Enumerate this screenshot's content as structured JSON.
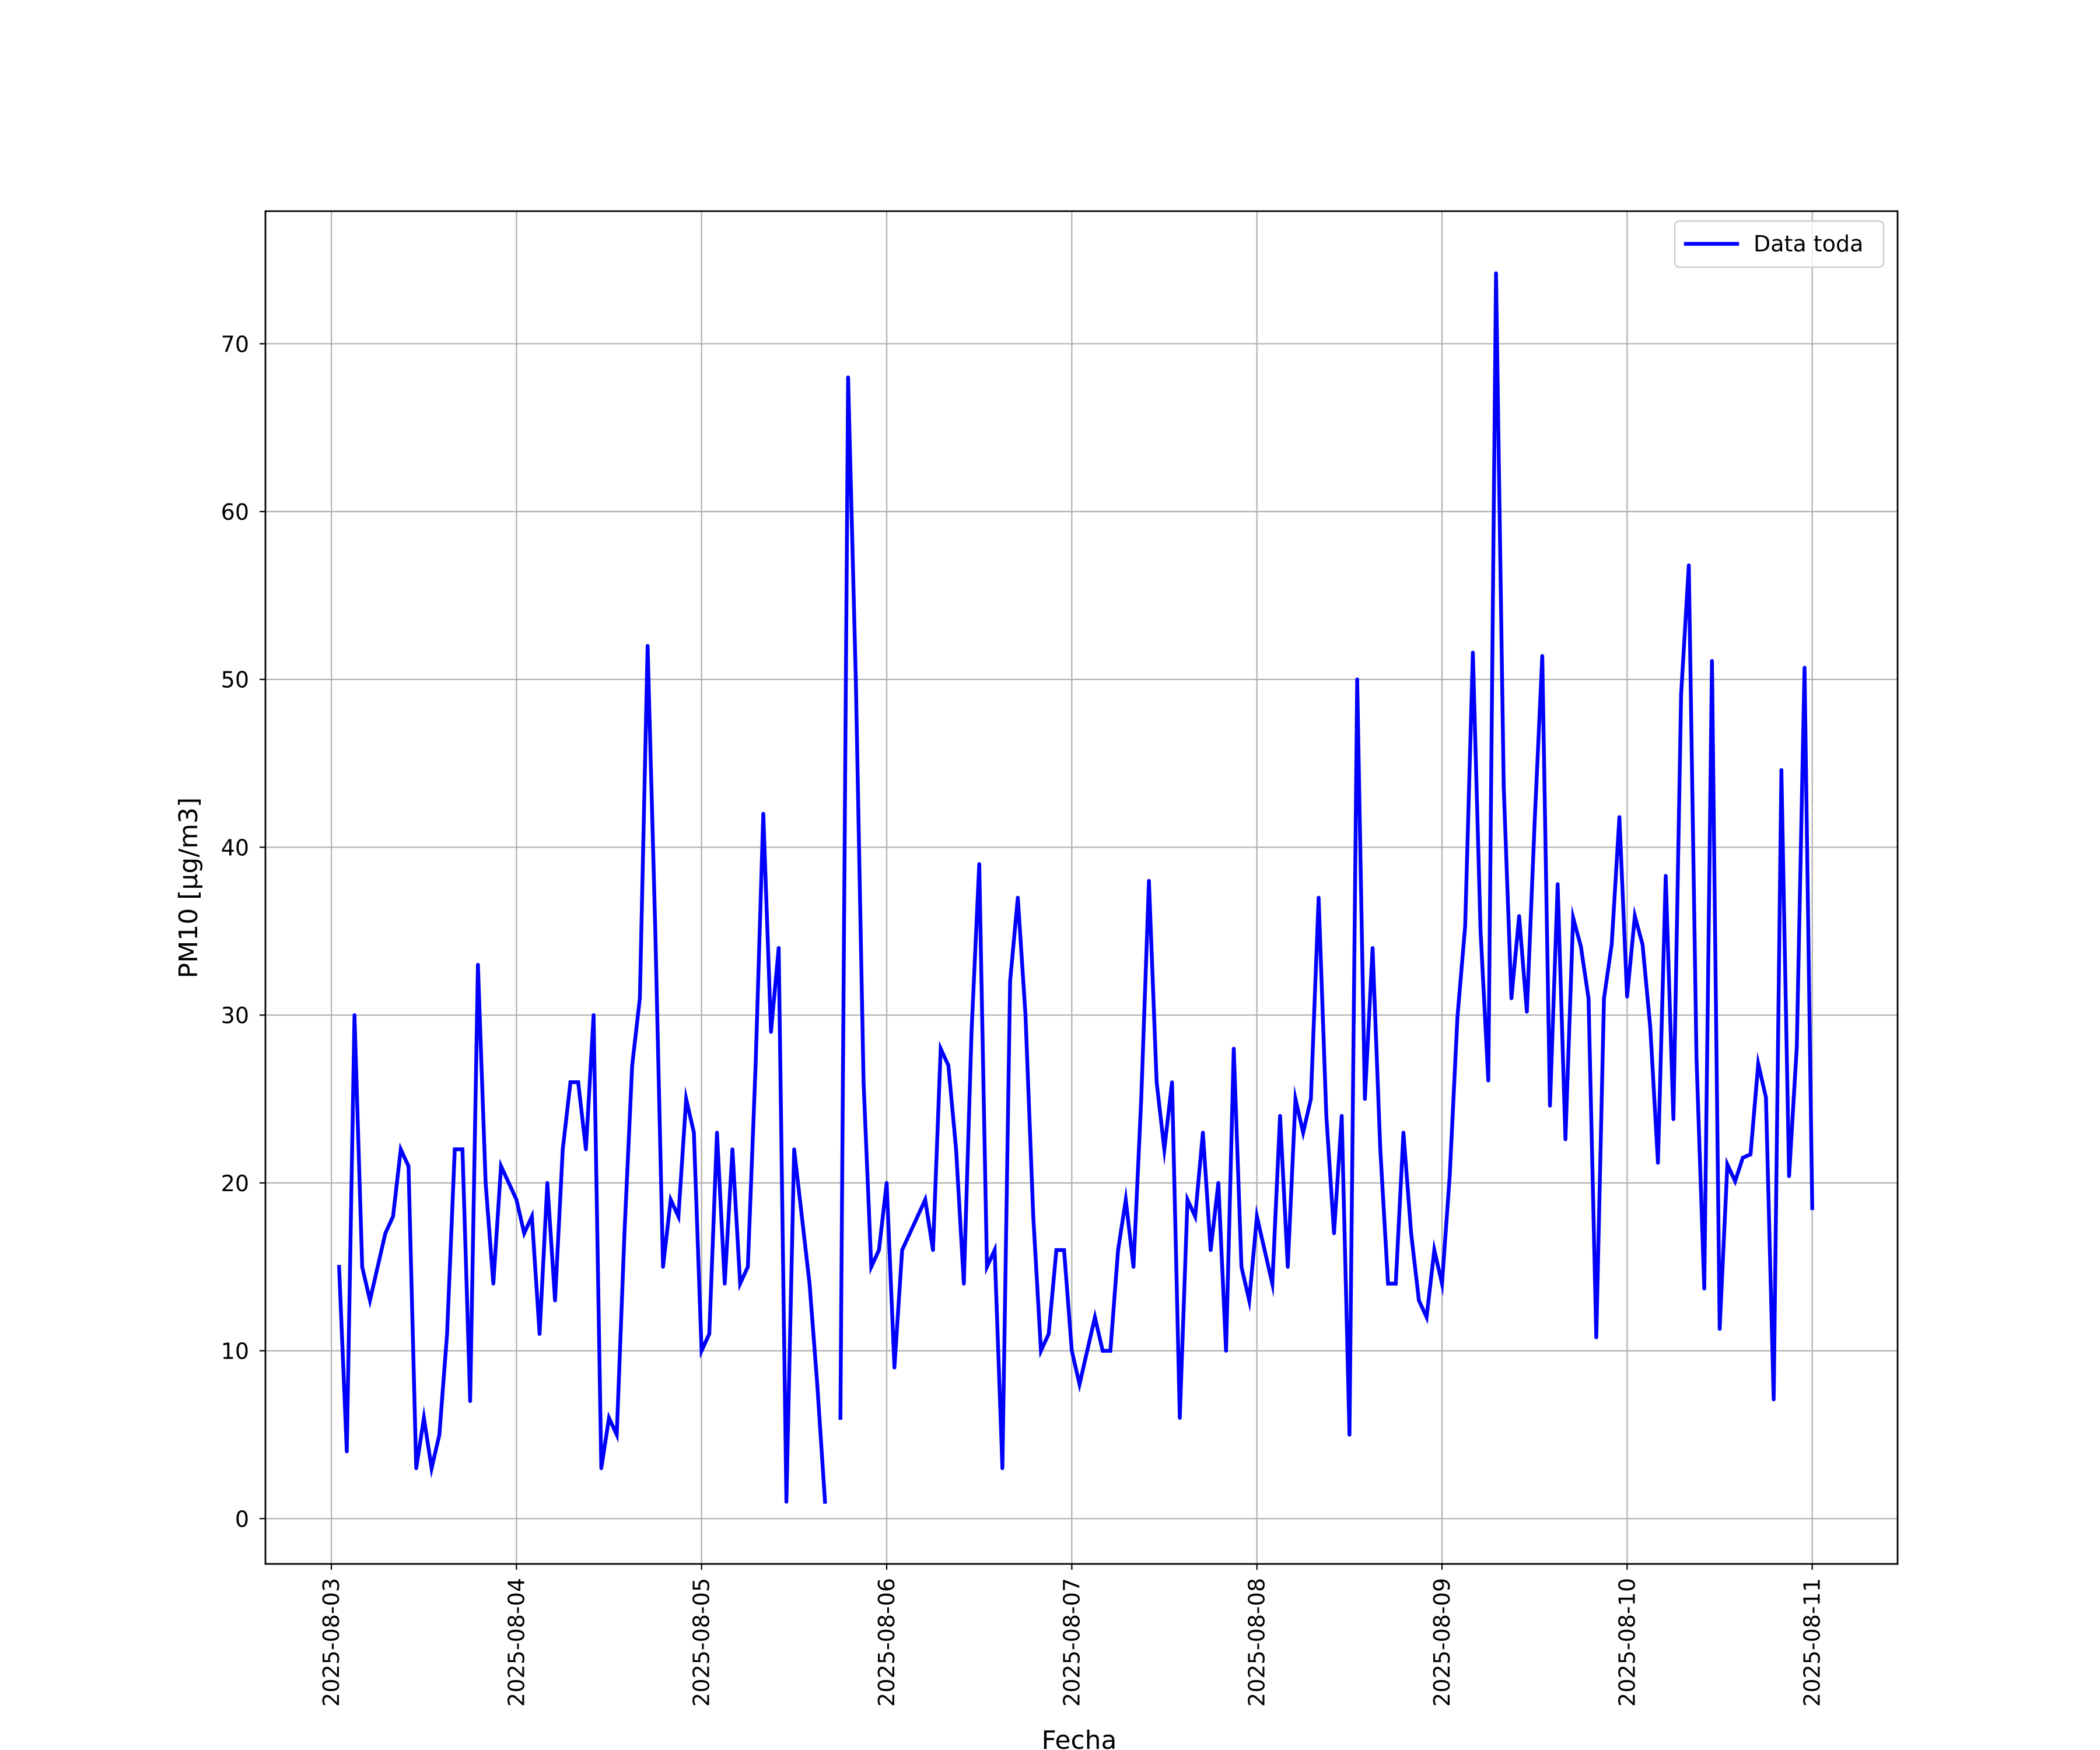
{
  "chart_data": {
    "type": "line",
    "title": "",
    "xlabel": "Fecha",
    "ylabel": "PM10 [μg/m3]",
    "ylim": [
      -2.7,
      77.9
    ],
    "yticks": [
      0,
      10,
      20,
      30,
      40,
      50,
      60,
      70
    ],
    "xlim": [
      "2025-08-02 15:27",
      "2025-08-11 11:04"
    ],
    "xticks": [
      "2025-08-03",
      "2025-08-04",
      "2025-08-05",
      "2025-08-06",
      "2025-08-07",
      "2025-08-08",
      "2025-08-09",
      "2025-08-10",
      "2025-08-11"
    ],
    "grid": true,
    "legend_position": "top-right",
    "series": [
      {
        "name": "Data toda",
        "color": "#0000ff",
        "points": [
          [
            "2025-08-03 01:00",
            15
          ],
          [
            "2025-08-03 02:00",
            4
          ],
          [
            "2025-08-03 03:00",
            30
          ],
          [
            "2025-08-03 04:00",
            15
          ],
          [
            "2025-08-03 05:00",
            13
          ],
          [
            "2025-08-03 06:00",
            15
          ],
          [
            "2025-08-03 07:00",
            17
          ],
          [
            "2025-08-03 08:00",
            18
          ],
          [
            "2025-08-03 09:00",
            22
          ],
          [
            "2025-08-03 10:00",
            21
          ],
          [
            "2025-08-03 11:00",
            3
          ],
          [
            "2025-08-03 12:00",
            6
          ],
          [
            "2025-08-03 13:00",
            3
          ],
          [
            "2025-08-03 14:00",
            5
          ],
          [
            "2025-08-03 15:00",
            11
          ],
          [
            "2025-08-03 16:00",
            22
          ],
          [
            "2025-08-03 17:00",
            22
          ],
          [
            "2025-08-03 18:00",
            7
          ],
          [
            "2025-08-03 19:00",
            33
          ],
          [
            "2025-08-03 20:00",
            20
          ],
          [
            "2025-08-03 21:00",
            14
          ],
          [
            "2025-08-03 22:00",
            21
          ],
          [
            "2025-08-03 23:00",
            20
          ],
          [
            "2025-08-04 00:00",
            19
          ],
          [
            "2025-08-04 01:00",
            17
          ],
          [
            "2025-08-04 02:00",
            18
          ],
          [
            "2025-08-04 03:00",
            11
          ],
          [
            "2025-08-04 04:00",
            20
          ],
          [
            "2025-08-04 05:00",
            13
          ],
          [
            "2025-08-04 06:00",
            22
          ],
          [
            "2025-08-04 07:00",
            26
          ],
          [
            "2025-08-04 08:00",
            26
          ],
          [
            "2025-08-04 09:00",
            22
          ],
          [
            "2025-08-04 10:00",
            30
          ],
          [
            "2025-08-04 11:00",
            3
          ],
          [
            "2025-08-04 12:00",
            6
          ],
          [
            "2025-08-04 13:00",
            5
          ],
          [
            "2025-08-04 14:00",
            17
          ],
          [
            "2025-08-04 15:00",
            27
          ],
          [
            "2025-08-04 16:00",
            31
          ],
          [
            "2025-08-04 17:00",
            52
          ],
          [
            "2025-08-04 18:00",
            35
          ],
          [
            "2025-08-04 19:00",
            15
          ],
          [
            "2025-08-04 20:00",
            19
          ],
          [
            "2025-08-04 21:00",
            18
          ],
          [
            "2025-08-04 22:00",
            25
          ],
          [
            "2025-08-04 23:00",
            23
          ],
          [
            "2025-08-05 00:00",
            10
          ],
          [
            "2025-08-05 01:00",
            11
          ],
          [
            "2025-08-05 02:00",
            23
          ],
          [
            "2025-08-05 03:00",
            14
          ],
          [
            "2025-08-05 04:00",
            22
          ],
          [
            "2025-08-05 05:00",
            14
          ],
          [
            "2025-08-05 06:00",
            15
          ],
          [
            "2025-08-05 07:00",
            27
          ],
          [
            "2025-08-05 08:00",
            42
          ],
          [
            "2025-08-05 09:00",
            29
          ],
          [
            "2025-08-05 10:00",
            34
          ],
          [
            "2025-08-05 11:00",
            1
          ],
          [
            "2025-08-05 12:00",
            22
          ],
          [
            "2025-08-05 13:00",
            18
          ],
          [
            "2025-08-05 14:00",
            14
          ],
          [
            "2025-08-05 15:00",
            8
          ],
          [
            "2025-08-05 16:00",
            1
          ],
          null,
          [
            "2025-08-05 18:00",
            6
          ],
          [
            "2025-08-05 19:00",
            68
          ],
          [
            "2025-08-05 20:00",
            50
          ],
          [
            "2025-08-05 21:00",
            26
          ],
          [
            "2025-08-05 22:00",
            15
          ],
          [
            "2025-08-05 23:00",
            16
          ],
          [
            "2025-08-06 00:00",
            20
          ],
          [
            "2025-08-06 01:00",
            9
          ],
          [
            "2025-08-06 02:00",
            16
          ],
          [
            "2025-08-06 03:00",
            17
          ],
          [
            "2025-08-06 04:00",
            18
          ],
          [
            "2025-08-06 05:00",
            19
          ],
          [
            "2025-08-06 06:00",
            16
          ],
          [
            "2025-08-06 07:00",
            28
          ],
          [
            "2025-08-06 08:00",
            27
          ],
          [
            "2025-08-06 09:00",
            22
          ],
          [
            "2025-08-06 10:00",
            14
          ],
          [
            "2025-08-06 11:00",
            29
          ],
          [
            "2025-08-06 12:00",
            39
          ],
          [
            "2025-08-06 13:00",
            15
          ],
          [
            "2025-08-06 14:00",
            16
          ],
          [
            "2025-08-06 15:00",
            3
          ],
          [
            "2025-08-06 16:00",
            32
          ],
          [
            "2025-08-06 17:00",
            37
          ],
          [
            "2025-08-06 18:00",
            30
          ],
          [
            "2025-08-06 19:00",
            18
          ],
          [
            "2025-08-06 20:00",
            10
          ],
          [
            "2025-08-06 21:00",
            11
          ],
          [
            "2025-08-06 22:00",
            16
          ],
          [
            "2025-08-06 23:00",
            16
          ],
          [
            "2025-08-07 00:00",
            10
          ],
          [
            "2025-08-07 01:00",
            8
          ],
          [
            "2025-08-07 02:00",
            10
          ],
          [
            "2025-08-07 03:00",
            12
          ],
          [
            "2025-08-07 04:00",
            10
          ],
          [
            "2025-08-07 05:00",
            10
          ],
          [
            "2025-08-07 06:00",
            16
          ],
          [
            "2025-08-07 07:00",
            19
          ],
          [
            "2025-08-07 08:00",
            15
          ],
          [
            "2025-08-07 09:00",
            25
          ],
          [
            "2025-08-07 10:00",
            38
          ],
          [
            "2025-08-07 11:00",
            26
          ],
          [
            "2025-08-07 12:00",
            22
          ],
          [
            "2025-08-07 13:00",
            26
          ],
          [
            "2025-08-07 14:00",
            6
          ],
          [
            "2025-08-07 15:00",
            19
          ],
          [
            "2025-08-07 16:00",
            18
          ],
          [
            "2025-08-07 17:00",
            23
          ],
          [
            "2025-08-07 18:00",
            16
          ],
          [
            "2025-08-07 19:00",
            20
          ],
          [
            "2025-08-07 20:00",
            10
          ],
          [
            "2025-08-07 21:00",
            28
          ],
          [
            "2025-08-07 22:00",
            15
          ],
          [
            "2025-08-07 23:00",
            13
          ],
          [
            "2025-08-08 00:00",
            18
          ],
          [
            "2025-08-08 01:00",
            16
          ],
          [
            "2025-08-08 02:00",
            14
          ],
          [
            "2025-08-08 03:00",
            24
          ],
          [
            "2025-08-08 04:00",
            15
          ],
          [
            "2025-08-08 05:00",
            25
          ],
          [
            "2025-08-08 06:00",
            23
          ],
          [
            "2025-08-08 07:00",
            25
          ],
          [
            "2025-08-08 08:00",
            37
          ],
          [
            "2025-08-08 09:00",
            24
          ],
          [
            "2025-08-08 10:00",
            17
          ],
          [
            "2025-08-08 11:00",
            24
          ],
          [
            "2025-08-08 12:00",
            5
          ],
          [
            "2025-08-08 13:00",
            50
          ],
          [
            "2025-08-08 14:00",
            25
          ],
          [
            "2025-08-08 15:00",
            34
          ],
          [
            "2025-08-08 16:00",
            22
          ],
          [
            "2025-08-08 17:00",
            14
          ],
          [
            "2025-08-08 18:00",
            14
          ],
          [
            "2025-08-08 19:00",
            23
          ],
          [
            "2025-08-08 20:00",
            17
          ],
          [
            "2025-08-08 21:00",
            13
          ],
          [
            "2025-08-08 22:00",
            12
          ],
          [
            "2025-08-08 23:00",
            16
          ],
          [
            "2025-08-09 00:00",
            14
          ],
          [
            "2025-08-09 01:00",
            20.4
          ],
          [
            "2025-08-09 02:00",
            29.9
          ],
          [
            "2025-08-09 03:00",
            35.3
          ],
          [
            "2025-08-09 04:00",
            51.6
          ],
          [
            "2025-08-09 05:00",
            35
          ],
          [
            "2025-08-09 06:00",
            26.1
          ],
          [
            "2025-08-09 07:00",
            74.2
          ],
          [
            "2025-08-09 08:00",
            43.6
          ],
          [
            "2025-08-09 09:00",
            31
          ],
          [
            "2025-08-09 10:00",
            35.9
          ],
          [
            "2025-08-09 11:00",
            30.2
          ],
          [
            "2025-08-09 12:00",
            41.4
          ],
          [
            "2025-08-09 13:00",
            51.4
          ],
          [
            "2025-08-09 14:00",
            24.6
          ],
          [
            "2025-08-09 15:00",
            37.8
          ],
          [
            "2025-08-09 16:00",
            22.6
          ],
          [
            "2025-08-09 17:00",
            35.8
          ],
          [
            "2025-08-09 18:00",
            34.1
          ],
          [
            "2025-08-09 19:00",
            31
          ],
          [
            "2025-08-09 20:00",
            10.8
          ],
          [
            "2025-08-09 21:00",
            31
          ],
          [
            "2025-08-09 22:00",
            34.2
          ],
          [
            "2025-08-09 23:00",
            41.8
          ],
          [
            "2025-08-10 00:00",
            31.1
          ],
          [
            "2025-08-10 01:00",
            35.9
          ],
          [
            "2025-08-10 02:00",
            34.2
          ],
          [
            "2025-08-10 03:00",
            29.3
          ],
          [
            "2025-08-10 04:00",
            21.2
          ],
          [
            "2025-08-10 05:00",
            38.3
          ],
          [
            "2025-08-10 06:00",
            23.8
          ],
          [
            "2025-08-10 07:00",
            49.1
          ],
          [
            "2025-08-10 08:00",
            56.8
          ],
          [
            "2025-08-10 09:00",
            27.4
          ],
          [
            "2025-08-10 10:00",
            13.7
          ],
          [
            "2025-08-10 11:00",
            51.1
          ],
          [
            "2025-08-10 12:00",
            11.3
          ],
          [
            "2025-08-10 13:00",
            21.1
          ],
          [
            "2025-08-10 14:00",
            20.1
          ],
          [
            "2025-08-10 15:00",
            21.5
          ],
          [
            "2025-08-10 16:00",
            21.7
          ],
          [
            "2025-08-10 17:00",
            27.1
          ],
          [
            "2025-08-10 18:00",
            25.1
          ],
          [
            "2025-08-10 19:00",
            7.1
          ],
          [
            "2025-08-10 20:00",
            44.6
          ],
          [
            "2025-08-10 21:00",
            20.4
          ],
          [
            "2025-08-10 22:00",
            28.1
          ],
          [
            "2025-08-10 23:00",
            50.7
          ],
          [
            "2025-08-11 00:00",
            18.5
          ]
        ]
      }
    ]
  }
}
